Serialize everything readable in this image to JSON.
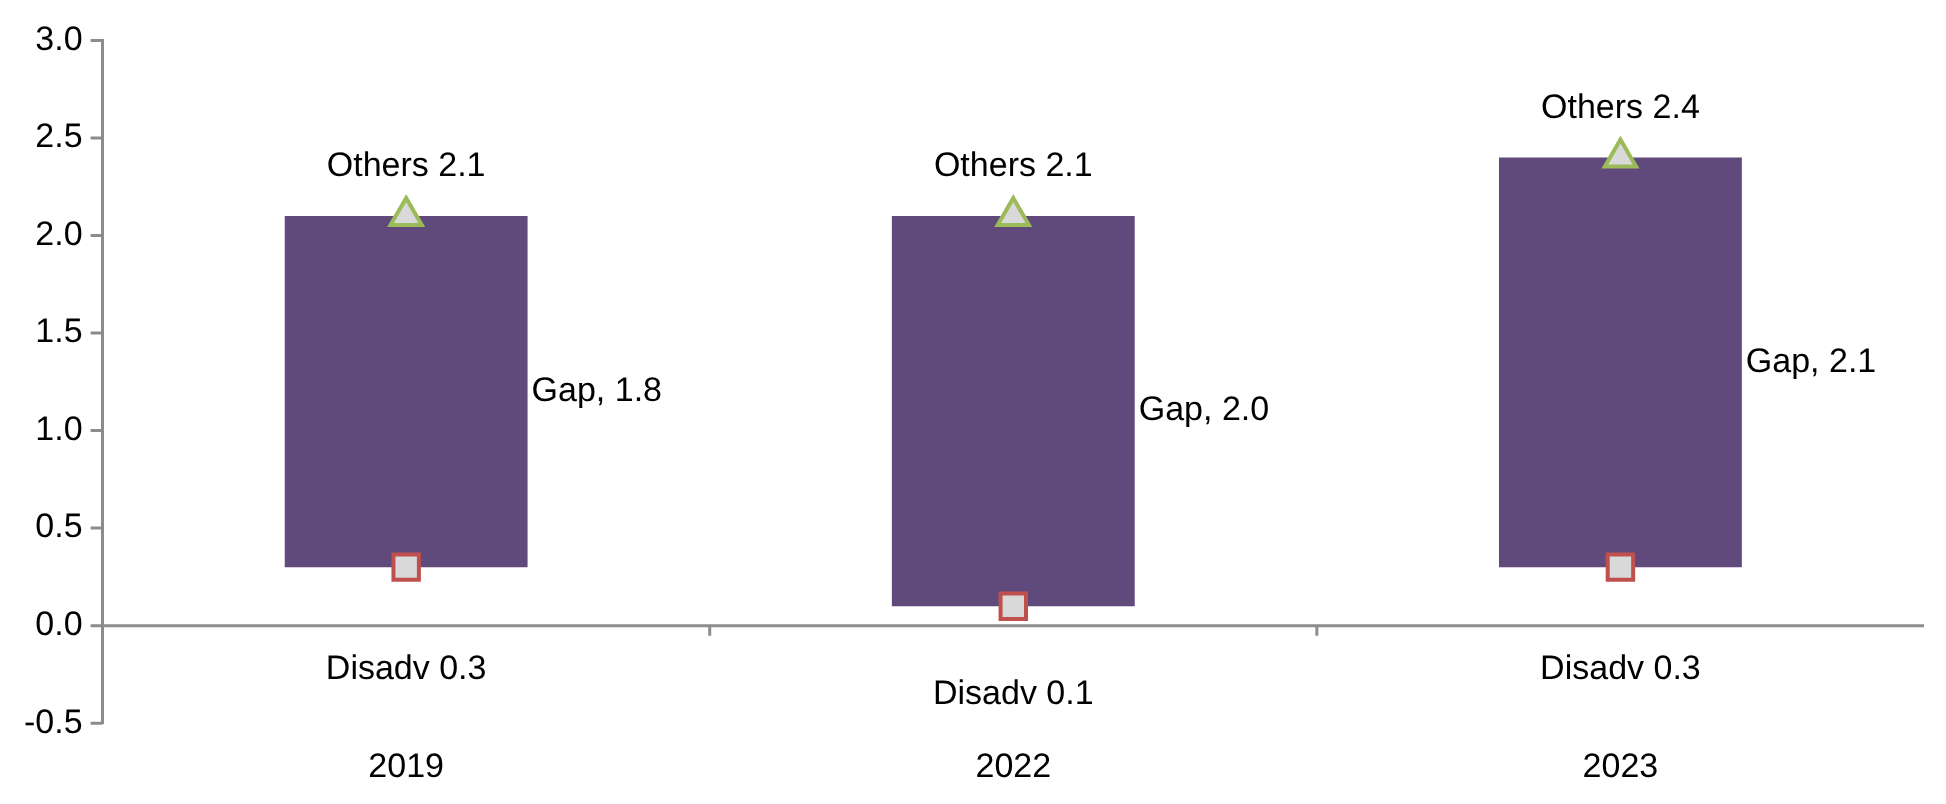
{
  "chart_data": {
    "type": "bar",
    "categories": [
      "2019",
      "2022",
      "2023"
    ],
    "series": [
      {
        "name": "Gap,",
        "color": "#604a7b",
        "base": [
          0.3,
          0.1,
          0.3
        ],
        "values": [
          1.8,
          2.0,
          2.1
        ],
        "value_labels": [
          "1.8",
          "2.0",
          "2.1"
        ]
      },
      {
        "type": "scatter",
        "name": "Disadv",
        "marker": "square",
        "color": "#d9d9d9",
        "values": [
          0.3,
          0.1,
          0.3
        ],
        "value_labels": [
          "0.3",
          "0.1",
          "0.3"
        ]
      },
      {
        "type": "scatter",
        "name": "Others",
        "marker": "triangle",
        "color": "#d9d9d9",
        "values": [
          2.1,
          2.1,
          2.4
        ],
        "value_labels": [
          "2.1",
          "2.1",
          "2.4"
        ]
      }
    ],
    "ylim": [
      -0.5,
      3.0
    ],
    "yticks": [
      -0.5,
      {
        "value": 0,
        "label": "0.0"
      },
      0.5,
      {
        "value": 1,
        "label": "1.0"
      },
      1.5,
      {
        "value": 2,
        "label": "2.0"
      },
      2.5,
      {
        "value": 3,
        "label": "3.0"
      }
    ],
    "legend": false
  }
}
